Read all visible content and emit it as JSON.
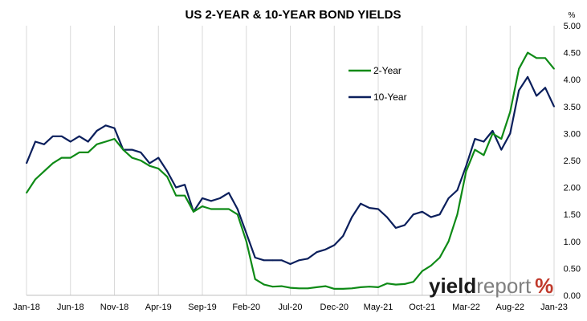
{
  "chart_data": {
    "type": "line",
    "title": "US 2-YEAR & 10-YEAR BOND YIELDS",
    "y_unit": "%",
    "ylim": [
      0,
      5
    ],
    "y_ticks": [
      "5.00",
      "4.50",
      "4.00",
      "3.50",
      "3.00",
      "2.50",
      "2.00",
      "1.50",
      "1.00",
      "0.50",
      "0.00"
    ],
    "y_tick_values": [
      5,
      4.5,
      4,
      3.5,
      3,
      2.5,
      2,
      1.5,
      1,
      0.5,
      0
    ],
    "x_tick_labels": [
      "Jan-18",
      "Jun-18",
      "Nov-18",
      "Apr-19",
      "Sep-19",
      "Feb-20",
      "Jul-20",
      "Dec-20",
      "May-21",
      "Oct-21",
      "Mar-22",
      "Aug-22",
      "Jan-23"
    ],
    "x_range": [
      "2018-01",
      "2023-01"
    ],
    "grid": "vertical",
    "legend_position": "top-right",
    "colors": {
      "2-Year": "#0e8a16",
      "10-Year": "#0b1f5c"
    },
    "x": [
      "2018-01",
      "2018-02",
      "2018-03",
      "2018-04",
      "2018-05",
      "2018-06",
      "2018-07",
      "2018-08",
      "2018-09",
      "2018-10",
      "2018-11",
      "2018-12",
      "2019-01",
      "2019-02",
      "2019-03",
      "2019-04",
      "2019-05",
      "2019-06",
      "2019-07",
      "2019-08",
      "2019-09",
      "2019-10",
      "2019-11",
      "2019-12",
      "2020-01",
      "2020-02",
      "2020-03",
      "2020-04",
      "2020-05",
      "2020-06",
      "2020-07",
      "2020-08",
      "2020-09",
      "2020-10",
      "2020-11",
      "2020-12",
      "2021-01",
      "2021-02",
      "2021-03",
      "2021-04",
      "2021-05",
      "2021-06",
      "2021-07",
      "2021-08",
      "2021-09",
      "2021-10",
      "2021-11",
      "2021-12",
      "2022-01",
      "2022-02",
      "2022-03",
      "2022-04",
      "2022-05",
      "2022-06",
      "2022-07",
      "2022-08",
      "2022-09",
      "2022-10",
      "2022-11",
      "2022-12",
      "2023-01"
    ],
    "series": [
      {
        "name": "2-Year",
        "values": [
          1.9,
          2.15,
          2.3,
          2.45,
          2.55,
          2.55,
          2.65,
          2.65,
          2.8,
          2.85,
          2.9,
          2.7,
          2.55,
          2.5,
          2.4,
          2.35,
          2.2,
          1.85,
          1.85,
          1.55,
          1.65,
          1.6,
          1.6,
          1.6,
          1.5,
          1.0,
          0.3,
          0.2,
          0.16,
          0.17,
          0.14,
          0.13,
          0.13,
          0.15,
          0.17,
          0.12,
          0.12,
          0.13,
          0.15,
          0.16,
          0.15,
          0.22,
          0.2,
          0.21,
          0.25,
          0.45,
          0.55,
          0.7,
          1.0,
          1.5,
          2.3,
          2.7,
          2.6,
          3.0,
          2.9,
          3.4,
          4.2,
          4.5,
          4.4,
          4.4,
          4.2
        ]
      },
      {
        "name": "10-Year",
        "values": [
          2.45,
          2.85,
          2.8,
          2.95,
          2.95,
          2.85,
          2.95,
          2.85,
          3.05,
          3.15,
          3.1,
          2.7,
          2.7,
          2.65,
          2.45,
          2.55,
          2.3,
          2.0,
          2.05,
          1.55,
          1.8,
          1.75,
          1.8,
          1.9,
          1.6,
          1.15,
          0.7,
          0.65,
          0.65,
          0.65,
          0.58,
          0.65,
          0.68,
          0.8,
          0.85,
          0.93,
          1.1,
          1.45,
          1.7,
          1.62,
          1.6,
          1.45,
          1.25,
          1.3,
          1.5,
          1.55,
          1.45,
          1.5,
          1.8,
          1.95,
          2.4,
          2.9,
          2.85,
          3.05,
          2.7,
          3.0,
          3.8,
          4.05,
          3.7,
          3.85,
          3.5
        ]
      }
    ]
  },
  "logo": {
    "part1": "yield",
    "part2": "report",
    "part3": "%"
  }
}
